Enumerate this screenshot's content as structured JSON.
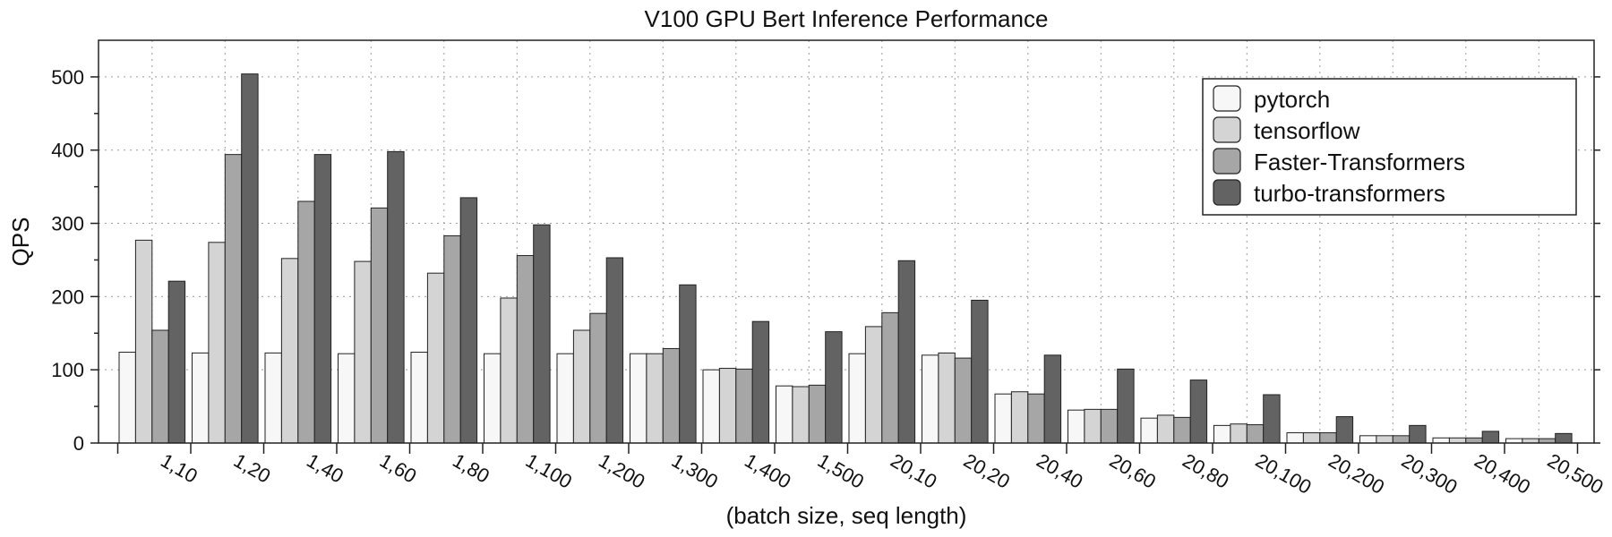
{
  "chart_data": {
    "type": "bar",
    "title": "V100 GPU Bert Inference Performance",
    "xlabel": "(batch size, seq length)",
    "ylabel": "QPS",
    "ylim": [
      0,
      550
    ],
    "yticks": [
      0,
      100,
      200,
      300,
      400,
      500
    ],
    "grid": true,
    "legend_position": "top-right",
    "categories": [
      "1,10",
      "1,20",
      "1,40",
      "1,60",
      "1,80",
      "1,100",
      "1,200",
      "1,300",
      "1,400",
      "1,500",
      "20,10",
      "20,20",
      "20,40",
      "20,60",
      "20,80",
      "20,100",
      "20,200",
      "20,300",
      "20,400",
      "20,500"
    ],
    "series": [
      {
        "name": "pytorch",
        "color": "#f7f7f7",
        "values": [
          124,
          123,
          123,
          122,
          124,
          122,
          122,
          122,
          100,
          78,
          122,
          120,
          67,
          45,
          34,
          24,
          14,
          10,
          7,
          6
        ]
      },
      {
        "name": "tensorflow",
        "color": "#d4d4d4",
        "values": [
          277,
          274,
          252,
          248,
          232,
          198,
          154,
          122,
          102,
          77,
          159,
          123,
          70,
          46,
          38,
          26,
          14,
          10,
          7,
          6
        ]
      },
      {
        "name": "Faster-Transformers",
        "color": "#a6a6a6",
        "values": [
          154,
          394,
          330,
          321,
          283,
          256,
          177,
          129,
          101,
          79,
          178,
          116,
          67,
          46,
          35,
          25,
          14,
          10,
          7,
          6
        ]
      },
      {
        "name": "turbo-transformers",
        "color": "#636363",
        "values": [
          221,
          504,
          394,
          398,
          335,
          298,
          253,
          216,
          166,
          152,
          249,
          195,
          120,
          101,
          86,
          66,
          36,
          24,
          16,
          13
        ]
      }
    ]
  }
}
